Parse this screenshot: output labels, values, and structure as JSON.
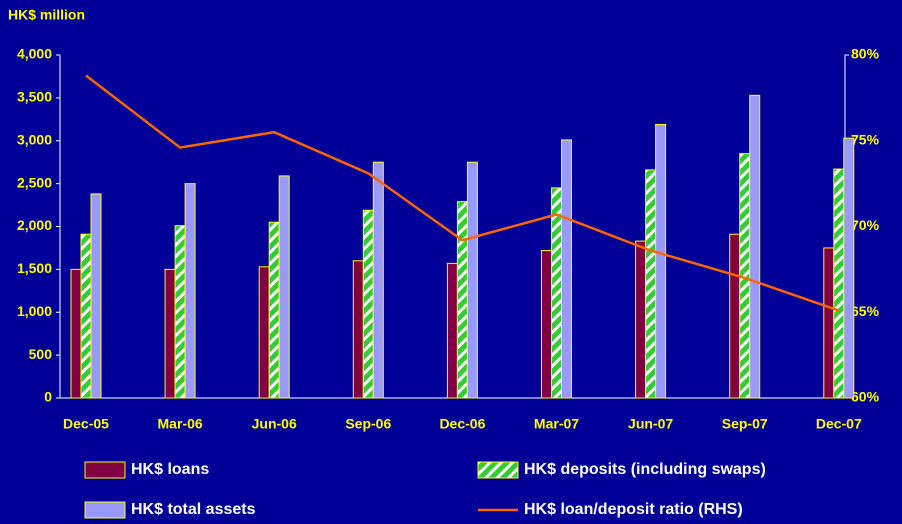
{
  "chart_data": {
    "type": "bar",
    "y_axis_title": "HK$ million",
    "categories": [
      "Dec-05",
      "Mar-06",
      "Jun-06",
      "Sep-06",
      "Dec-06",
      "Mar-07",
      "Jun-07",
      "Sep-07",
      "Dec-07"
    ],
    "series": [
      {
        "name": "HK$ loans",
        "color": "#800040",
        "values": [
          1500,
          1500,
          1530,
          1600,
          1570,
          1720,
          1830,
          1910,
          1750
        ]
      },
      {
        "name": "HK$ deposits (including swaps)",
        "color": "#33cc33",
        "values": [
          1910,
          2010,
          2050,
          2190,
          2290,
          2450,
          2660,
          2850,
          2670
        ]
      },
      {
        "name": "HK$ total assets",
        "color": "#9999ff",
        "values": [
          2380,
          2500,
          2590,
          2750,
          2750,
          3010,
          3190,
          3530,
          3030
        ]
      },
      {
        "name": "HK$ loan/deposit ratio (RHS)",
        "color": "#ff6600",
        "type": "line",
        "axis": "y2",
        "values": [
          78.8,
          74.6,
          75.5,
          73.1,
          69.2,
          70.7,
          68.6,
          67.0,
          65.1
        ]
      }
    ],
    "ylim": [
      0,
      4000
    ],
    "yticks": [
      0,
      500,
      {
        "value": 1000,
        "label": "1,000"
      },
      {
        "value": 1500,
        "label": "1,500"
      },
      {
        "value": 2000,
        "label": "2,000"
      },
      {
        "value": 2500,
        "label": "2,500"
      },
      {
        "value": 3000,
        "label": "3,000"
      },
      {
        "value": 3500,
        "label": "3,500"
      },
      {
        "value": 4000,
        "label": "4,000"
      }
    ],
    "y2lim": [
      60,
      80
    ],
    "y2ticks": [
      {
        "value": 60,
        "label": "60%"
      },
      {
        "value": 65,
        "label": "65%"
      },
      {
        "value": 70,
        "label": "70%"
      },
      {
        "value": 75,
        "label": "75%"
      },
      {
        "value": 80,
        "label": "80%"
      }
    ],
    "grid": false
  }
}
